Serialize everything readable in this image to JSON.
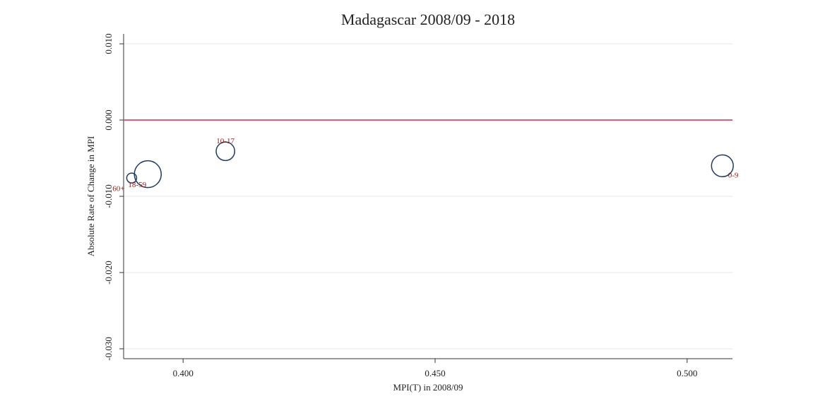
{
  "chart_data": {
    "type": "bubble",
    "title": "Madagascar 2008/09 - 2018",
    "x_label": "MPI(T) in 2008/09",
    "y_label": "Absolute Rate of Change in MPI",
    "labels": [
      "60+",
      "18-59",
      "10-17",
      "0-9"
    ],
    "x": [
      0.3898,
      0.393,
      0.4084,
      0.507
    ],
    "y": [
      -0.0076,
      -0.0071,
      -0.0041,
      -0.006
    ],
    "sizes": [
      6,
      44,
      21,
      29
    ],
    "color": "#1f3b5e",
    "label_color": "#8b1a1a",
    "reference_line": 0,
    "reference_color": "#d9607a",
    "xlim": [
      0.3882,
      0.509
    ],
    "ylim": [
      -0.0313,
      0.0113
    ],
    "xticks": [
      {
        "value": 0.4,
        "label": "0.400"
      },
      {
        "value": 0.45,
        "label": "0.450"
      },
      {
        "value": 0.5,
        "label": "0.500"
      }
    ],
    "yticks": [
      {
        "value": -0.03,
        "label": "-0.030"
      },
      {
        "value": -0.02,
        "label": "-0.020"
      },
      {
        "value": -0.01,
        "label": "-0.010"
      },
      {
        "value": 0,
        "label": "0.000"
      },
      {
        "value": 0.01,
        "label": "0.010"
      }
    ],
    "grid": true
  }
}
